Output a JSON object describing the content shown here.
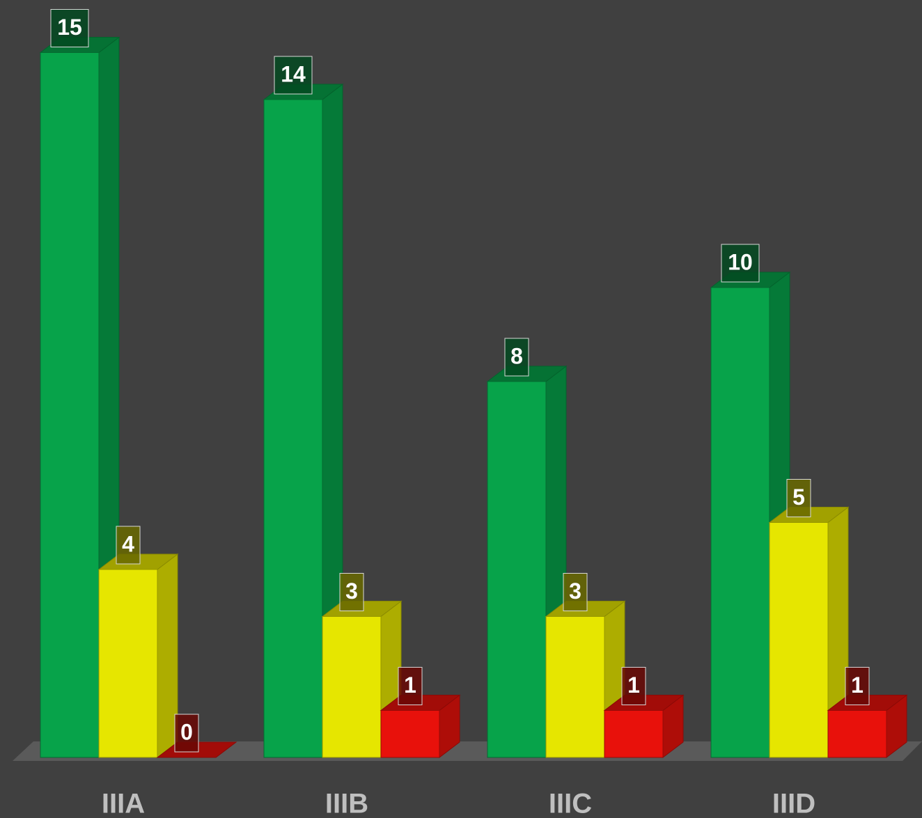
{
  "chart_data": {
    "type": "bar3d",
    "categories": [
      "IIIA",
      "IIIB",
      "IIIC",
      "IIID"
    ],
    "series": [
      {
        "color": "#07a34a",
        "values": [
          15,
          14,
          8,
          10
        ]
      },
      {
        "color": "#e6e600",
        "values": [
          4,
          3,
          3,
          5
        ]
      },
      {
        "color": "#e8110b",
        "values": [
          0,
          1,
          1,
          1
        ]
      }
    ],
    "ylim": [
      0,
      16
    ]
  }
}
